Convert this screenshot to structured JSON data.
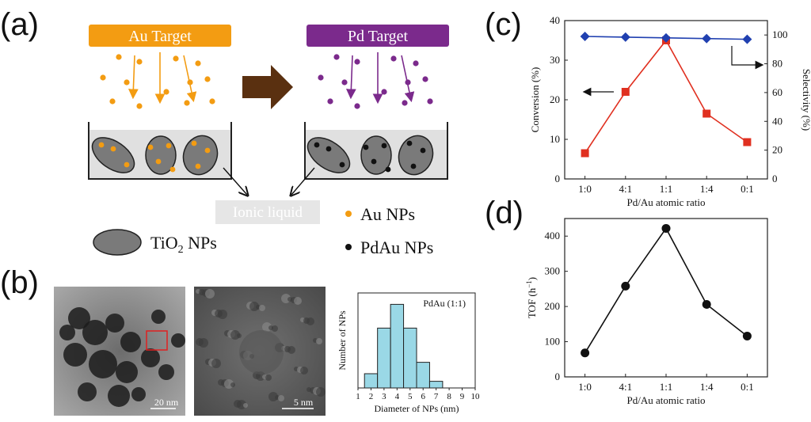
{
  "panel_labels": {
    "a": "(a)",
    "b": "(b)",
    "c": "(c)",
    "d": "(d)"
  },
  "colors": {
    "au": "#f39c12",
    "pd": "#7b2a8c",
    "arrow_brown": "#5a3010",
    "red": "#e03020",
    "blue": "#2040b0",
    "hist_fill": "#9ad8e6",
    "tem_bg": "#8d8d8d"
  },
  "schematic": {
    "au_target": "Au Target",
    "pd_target": "Pd Target",
    "ionic_liquid": "Ionic liquid",
    "tio2": "TiO",
    "tio2_sub": "2",
    "tio2_suffix": " NPs",
    "legend_au": "Au NPs",
    "legend_pdau": "PdAu NPs"
  },
  "micrographs": {
    "scale1": "20 nm",
    "scale2": "5 nm"
  },
  "chart_data": [
    {
      "type": "bar",
      "title": "PdAu (1:1)",
      "xlabel": "Diameter of NPs (nm)",
      "ylabel": "Number of NPs",
      "x_ticks": [
        "1",
        "2",
        "3",
        "4",
        "5",
        "6",
        "7",
        "8",
        "9",
        "10"
      ],
      "categories": [
        2,
        3,
        4,
        5,
        6,
        7
      ],
      "values": [
        15,
        63,
        88,
        63,
        27,
        7
      ],
      "xlim": [
        1,
        10
      ],
      "ylim": [
        0,
        100
      ]
    },
    {
      "type": "line",
      "categories": [
        "1:0",
        "4:1",
        "1:1",
        "1:4",
        "0:1"
      ],
      "xlabel": "Pd/Au atomic ratio",
      "ylabel_left": "Conversion (%)",
      "ylabel_right": "Selectivity (%)",
      "y_left_ticks": [
        "0",
        "10",
        "20",
        "30",
        "40"
      ],
      "y_right_ticks": [
        "0",
        "20",
        "40",
        "60",
        "80",
        "100"
      ],
      "ylim_left": [
        0,
        40
      ],
      "ylim_right": [
        0,
        110
      ],
      "series": [
        {
          "axis": "left",
          "color": "#e03020",
          "marker": "square",
          "values": [
            6.5,
            22,
            35,
            16.5,
            9.3
          ]
        },
        {
          "axis": "right",
          "color": "#2040b0",
          "marker": "diamond",
          "values": [
            99,
            98.5,
            98,
            97.5,
            97
          ]
        }
      ]
    },
    {
      "type": "line",
      "categories": [
        "1:0",
        "4:1",
        "1:1",
        "1:4",
        "0:1"
      ],
      "xlabel": "Pd/Au atomic ratio",
      "ylabel": "TOF (h",
      "ylabel_sup": "−1",
      "ylabel_end": ")",
      "y_ticks": [
        "0",
        "100",
        "200",
        "300",
        "400"
      ],
      "ylim": [
        0,
        450
      ],
      "series": [
        {
          "color": "#111111",
          "marker": "circle",
          "values": [
            68,
            258,
            422,
            206,
            116
          ]
        }
      ]
    }
  ]
}
